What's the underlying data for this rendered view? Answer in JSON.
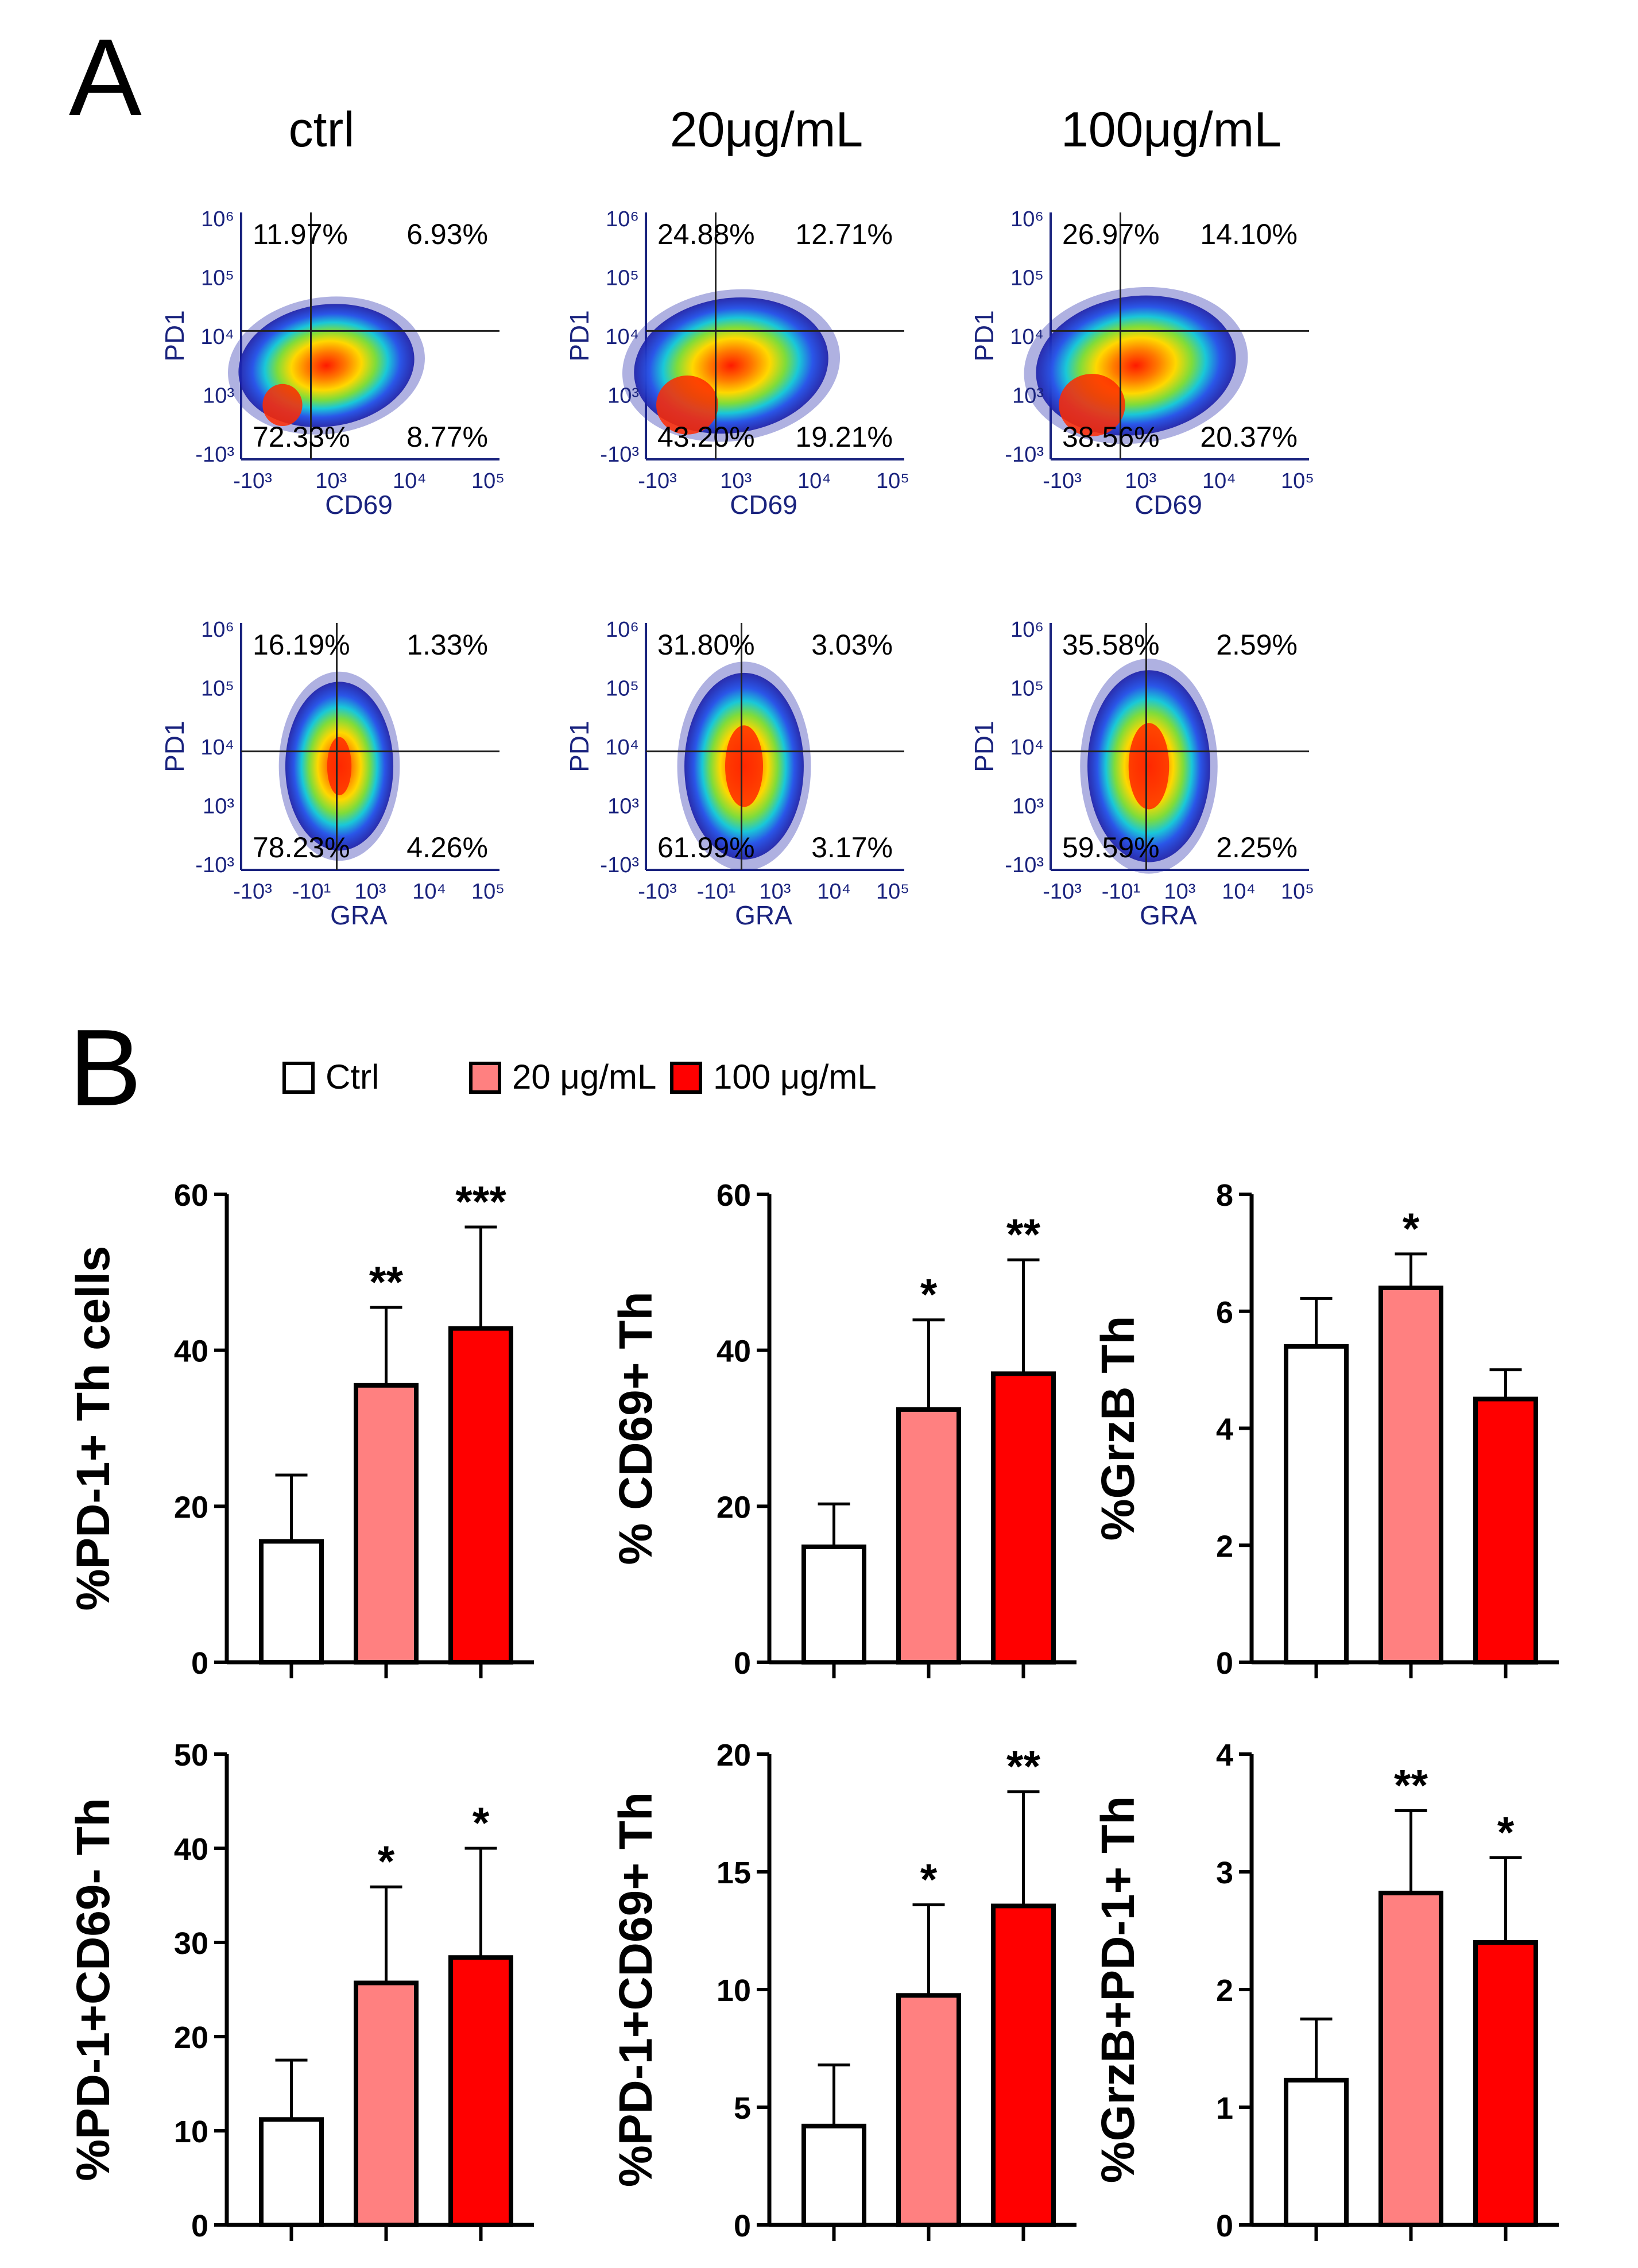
{
  "panel_labels": {
    "a": "A",
    "b": "B"
  },
  "panel_a": {
    "conditions": [
      "ctrl",
      "20μg/mL",
      "100μg/mL"
    ],
    "rows": [
      {
        "x_marker": "CD69",
        "y_marker": "PD1",
        "x_ticks": [
          "-10³",
          "10³",
          "10⁴",
          "10⁵"
        ],
        "y_ticks": [
          "10⁶",
          "10⁵",
          "10⁴",
          "10³",
          "-10³"
        ],
        "quadrants": [
          {
            "ul": "11.97%",
            "ur": "6.93%",
            "ll": "72.33%",
            "lr": "8.77%"
          },
          {
            "ul": "24.88%",
            "ur": "12.71%",
            "ll": "43.20%",
            "lr": "19.21%"
          },
          {
            "ul": "26.97%",
            "ur": "14.10%",
            "ll": "38.56%",
            "lr": "20.37%"
          }
        ]
      },
      {
        "x_marker": "GRA",
        "y_marker": "PD1",
        "x_ticks": [
          "-10³",
          "-10¹",
          "10³",
          "10⁴",
          "10⁵"
        ],
        "y_ticks": [
          "10⁶",
          "10⁵",
          "10⁴",
          "10³",
          "-10³"
        ],
        "quadrants": [
          {
            "ul": "16.19%",
            "ur": "1.33%",
            "ll": "78.23%",
            "lr": "4.26%"
          },
          {
            "ul": "31.80%",
            "ur": "3.03%",
            "ll": "61.99%",
            "lr": "3.17%"
          },
          {
            "ul": "35.58%",
            "ur": "2.59%",
            "ll": "59.59%",
            "lr": "2.25%"
          }
        ]
      }
    ]
  },
  "legend": [
    {
      "label": "Ctrl",
      "color": "#ffffff"
    },
    {
      "label": "20 μg/mL",
      "color": "#ff8080"
    },
    {
      "label": "100 μg/mL",
      "color": "#ff0000"
    }
  ],
  "chart_data": [
    {
      "type": "bar",
      "title": "",
      "ylabel": "%PD-1+  Th cells",
      "categories": [
        "Ctrl",
        "20 μg/mL",
        "100 μg/mL"
      ],
      "values": [
        15.5,
        35.5,
        42.8
      ],
      "errors": [
        8.5,
        10,
        13
      ],
      "significance": [
        "",
        "**",
        "***"
      ],
      "ylim": [
        0,
        60
      ],
      "yticks": [
        0,
        20,
        40,
        60
      ]
    },
    {
      "type": "bar",
      "title": "",
      "ylabel": "% CD69+ Th",
      "categories": [
        "Ctrl",
        "20 μg/mL",
        "100 μg/mL"
      ],
      "values": [
        14.8,
        32.4,
        37
      ],
      "errors": [
        5.5,
        11.5,
        14.6
      ],
      "significance": [
        "",
        "*",
        "**"
      ],
      "ylim": [
        0,
        60
      ],
      "yticks": [
        0,
        20,
        40,
        60
      ]
    },
    {
      "type": "bar",
      "title": "",
      "ylabel": "%GrzB Th",
      "categories": [
        "Ctrl",
        "20 μg/mL",
        "100 μg/mL"
      ],
      "values": [
        5.4,
        6.4,
        4.5
      ],
      "errors": [
        0.82,
        0.58,
        0.5
      ],
      "significance": [
        "",
        "*",
        ""
      ],
      "ylim": [
        0,
        8
      ],
      "yticks": [
        0,
        2,
        4,
        6,
        8
      ]
    },
    {
      "type": "bar",
      "title": "",
      "ylabel": "%PD-1+CD69- Th",
      "categories": [
        "Ctrl",
        "20 μg/mL",
        "100 μg/mL"
      ],
      "values": [
        11.2,
        25.7,
        28.4
      ],
      "errors": [
        6.3,
        10.2,
        11.6
      ],
      "significance": [
        "",
        "*",
        "*"
      ],
      "ylim": [
        0,
        50
      ],
      "yticks": [
        0,
        10,
        20,
        30,
        40,
        50
      ]
    },
    {
      "type": "bar",
      "title": "",
      "ylabel": "%PD-1+CD69+ Th",
      "categories": [
        "Ctrl",
        "20 μg/mL",
        "100 μg/mL"
      ],
      "values": [
        4.2,
        9.75,
        13.55
      ],
      "errors": [
        2.6,
        3.85,
        4.85
      ],
      "significance": [
        "",
        "*",
        "**"
      ],
      "ylim": [
        0,
        20
      ],
      "yticks": [
        0,
        5,
        10,
        15,
        20
      ]
    },
    {
      "type": "bar",
      "title": "",
      "ylabel": "%GrzB+PD-1+ Th",
      "categories": [
        "Ctrl",
        "20 μg/mL",
        "100 μg/mL"
      ],
      "values": [
        1.23,
        2.82,
        2.4
      ],
      "errors": [
        0.52,
        0.7,
        0.72
      ],
      "significance": [
        "",
        "**",
        "*"
      ],
      "ylim": [
        0,
        4
      ],
      "yticks": [
        0,
        1,
        2,
        3,
        4
      ]
    }
  ]
}
